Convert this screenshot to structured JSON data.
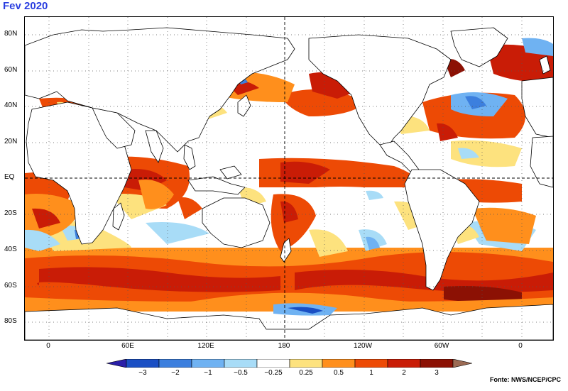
{
  "title": "Fev 2020",
  "source": "Fonte: NWS/NCEP/CPC",
  "lat_labels": [
    "80N",
    "60N",
    "40N",
    "20N",
    "EQ",
    "20S",
    "40S",
    "60S",
    "80S"
  ],
  "lon_labels": [
    "0",
    "60E",
    "120E",
    "180",
    "120W",
    "60W",
    "0"
  ],
  "legend": {
    "labels": [
      "−3",
      "−2",
      "−1",
      "−0.5",
      "−0.25",
      "0.25",
      "0.5",
      "1",
      "2",
      "3"
    ],
    "colors": {
      "below_min": "#2a1fa8",
      "lt_m2": "#1a4fc4",
      "m2_m1": "#3c7fde",
      "m1_m05": "#6fb2f2",
      "m05_m025": "#a8dcf7",
      "neutral": "#ffffff",
      "p025_p05": "#fde27e",
      "p05_p1": "#ff8f1c",
      "p1_p2": "#ed4a05",
      "p2_p3": "#c91c06",
      "gt_p3": "#8c1104",
      "above_max": "#9c6b54"
    }
  },
  "colors": {
    "title": "#2b3fe0",
    "land": "#ffffff",
    "coast": "#000000",
    "grid": "#555555"
  }
}
